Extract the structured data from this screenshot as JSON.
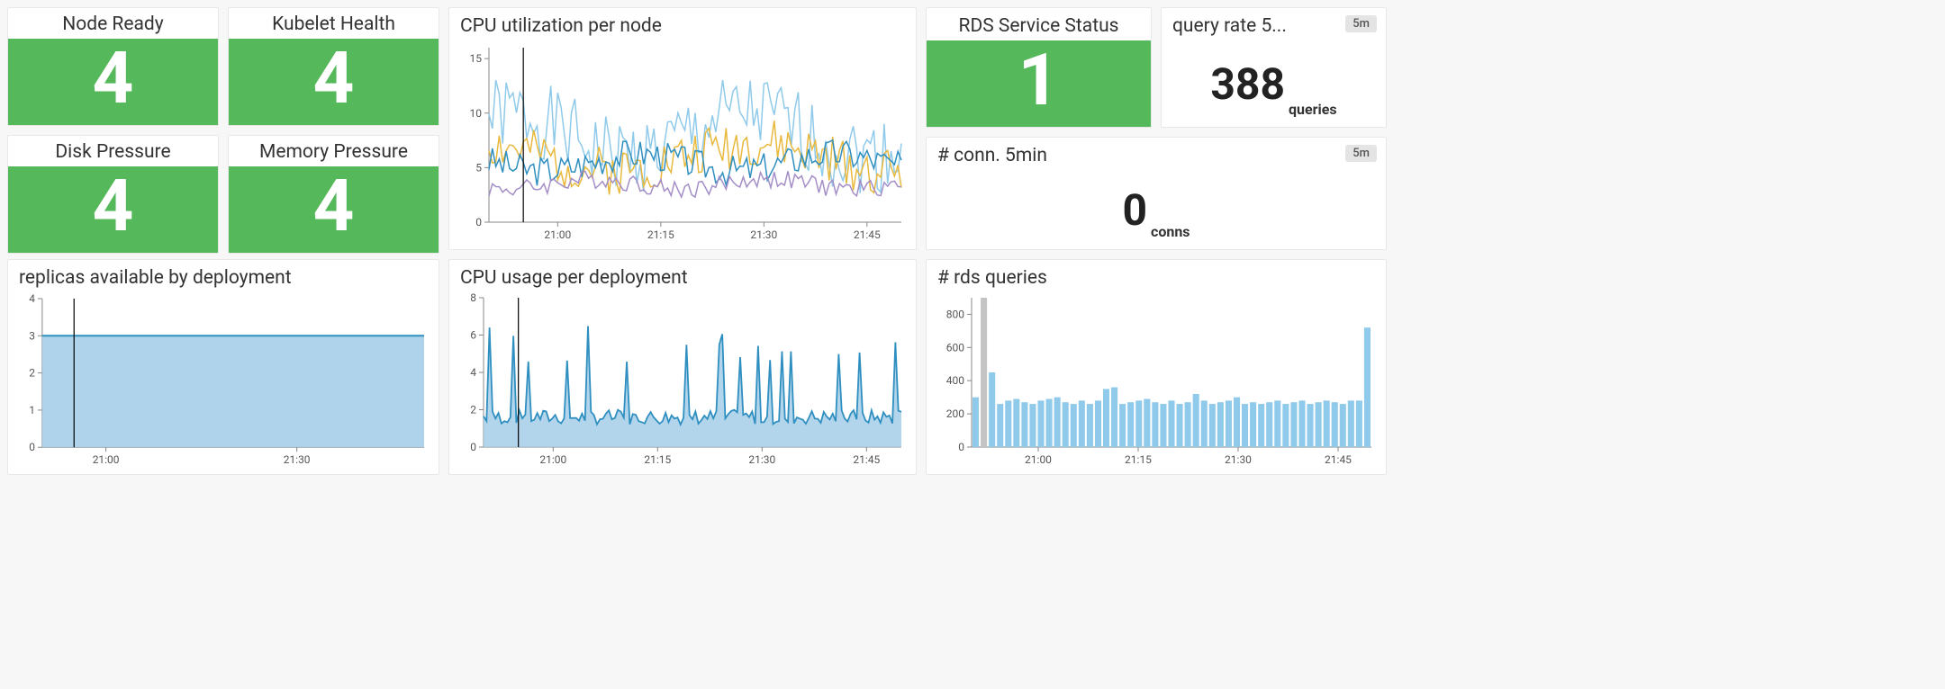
{
  "colors": {
    "green": "#55b85a",
    "blue_dark": "#2f8fc0",
    "blue_light": "#8fcaea",
    "yellow": "#e9b93d",
    "purple": "#a48ec7",
    "area_fill": "#a5cee8",
    "area_stroke": "#2f8fc0",
    "bar": "#8fcaea",
    "bar_highlight": "#c4c4c4",
    "axis": "#888888",
    "text": "#333333"
  },
  "x_time": {
    "start_min": 50,
    "end_min": 110,
    "ticks": [
      {
        "min": 60,
        "label": "21:00"
      },
      {
        "min": 75,
        "label": "21:15"
      },
      {
        "min": 90,
        "label": "21:30"
      },
      {
        "min": 105,
        "label": "21:45"
      }
    ]
  },
  "stat_tiles": [
    {
      "title": "Node Ready",
      "value": "4",
      "bg": "#55b85a"
    },
    {
      "title": "Kubelet Health",
      "value": "4",
      "bg": "#55b85a"
    },
    {
      "title": "Disk Pressure",
      "value": "4",
      "bg": "#55b85a"
    },
    {
      "title": "Memory Pressure",
      "value": "4",
      "bg": "#55b85a"
    }
  ],
  "rds_status": {
    "title": "RDS Service Status",
    "value": "1",
    "bg": "#55b85a"
  },
  "query_rate": {
    "title": "query rate 5...",
    "value": "388",
    "unit": "queries",
    "badge": "5m"
  },
  "conn_5min": {
    "title": "# conn. 5min",
    "value": "0",
    "unit": "conns",
    "badge": "5m"
  },
  "cpu_per_node": {
    "title": "CPU utilization per node",
    "ylim": [
      0,
      16
    ],
    "yticks": [
      0,
      5,
      10,
      15
    ],
    "cursor_min": 55,
    "series": [
      {
        "color": "#8fcaea",
        "baseline": 8,
        "amp": 5.5,
        "freq": 11,
        "seed": 1
      },
      {
        "color": "#e9b93d",
        "baseline": 6,
        "amp": 3.5,
        "freq": 13,
        "seed": 2
      },
      {
        "color": "#2f8fc0",
        "baseline": 5.5,
        "amp": 2.2,
        "freq": 9,
        "seed": 3
      },
      {
        "color": "#a48ec7",
        "baseline": 3.5,
        "amp": 1.3,
        "freq": 8,
        "seed": 4
      }
    ]
  },
  "replicas": {
    "title": "replicas available by deployment",
    "ylim": [
      0,
      4
    ],
    "yticks": [
      0,
      1,
      2,
      3,
      4
    ],
    "value": 3,
    "x_ticks": [
      {
        "min": 60,
        "label": "21:00"
      },
      {
        "min": 90,
        "label": "21:30"
      }
    ],
    "cursor_min": 55,
    "fill": "#a5cee8",
    "stroke": "#2f8fc0"
  },
  "cpu_per_deploy": {
    "title": "CPU usage per deployment",
    "ylim": [
      0,
      8
    ],
    "yticks": [
      0,
      2,
      4,
      6,
      8
    ],
    "cursor_min": 55,
    "fill": "#a5cee8",
    "stroke": "#2f8fc0",
    "baseline": 1.2,
    "spike_amp": 4.0,
    "seed": 7
  },
  "rds_queries": {
    "title": "# rds queries",
    "ylim": [
      0,
      900
    ],
    "yticks": [
      0,
      200,
      400,
      600,
      800
    ],
    "bars": [
      300,
      900,
      450,
      260,
      280,
      290,
      270,
      260,
      280,
      290,
      300,
      270,
      260,
      280,
      260,
      280,
      350,
      360,
      260,
      270,
      280,
      290,
      270,
      260,
      280,
      260,
      270,
      320,
      280,
      260,
      270,
      280,
      300,
      260,
      270,
      260,
      270,
      280,
      260,
      270,
      280,
      260,
      270,
      280,
      270,
      260,
      280,
      280,
      720
    ]
  }
}
